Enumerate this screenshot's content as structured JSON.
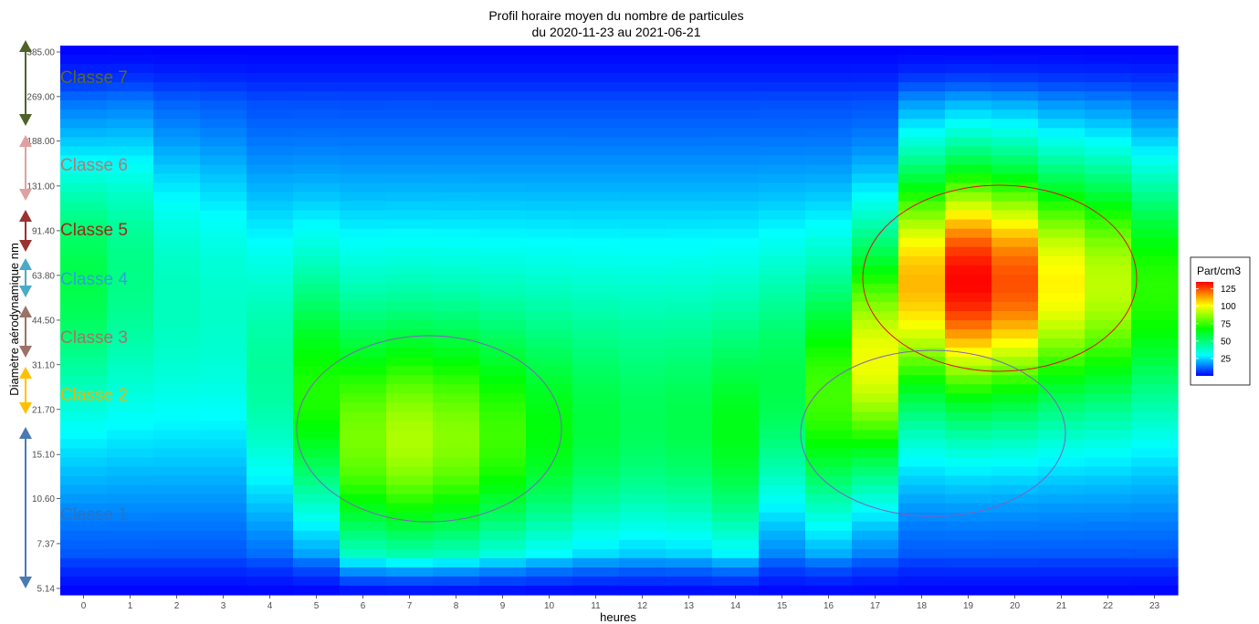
{
  "chart_data": {
    "type": "heatmap",
    "title": "Profil horaire moyen du nombre de particules",
    "subtitle": "du 2020-11-23 au 2021-06-21",
    "xlabel": "heures",
    "ylabel": "Diamètre aérodynamique nm",
    "x": [
      0,
      1,
      2,
      3,
      4,
      5,
      6,
      7,
      8,
      9,
      10,
      11,
      12,
      13,
      14,
      15,
      16,
      17,
      18,
      19,
      20,
      21,
      22,
      23
    ],
    "y_ticks": [
      "5.14",
      "7.37",
      "10.60",
      "15.10",
      "21.70",
      "31.10",
      "44.50",
      "63.80",
      "91.40",
      "131.00",
      "188.00",
      "269.00",
      "385.00"
    ],
    "y_scale": "log",
    "grid": false,
    "legend": {
      "title": "Part/cm3",
      "position": "right",
      "ticks": [
        25,
        50,
        75,
        100,
        125
      ],
      "range": [
        0,
        135
      ],
      "colors": [
        "#0000ff",
        "#00ffff",
        "#00ff00",
        "#ffff00",
        "#ff0000"
      ]
    },
    "series": [
      {
        "hour": 0,
        "peak_y": "75",
        "peak_value": 55
      },
      {
        "hour": 1,
        "peak_y": "91.40",
        "peak_value": 48
      },
      {
        "hour": 2,
        "peak_y": "91.40",
        "peak_value": 38
      },
      {
        "hour": 3,
        "peak_y": "91.40",
        "peak_value": 35
      },
      {
        "hour": 4,
        "peak_y": "21.70",
        "peak_value": 42
      },
      {
        "hour": 5,
        "peak_y": "21.70",
        "peak_value": 70
      },
      {
        "hour": 6,
        "peak_y": "15.10",
        "peak_value": 88
      },
      {
        "hour": 7,
        "peak_y": "15.10",
        "peak_value": 95
      },
      {
        "hour": 8,
        "peak_y": "15.10",
        "peak_value": 90
      },
      {
        "hour": 9,
        "peak_y": "15.10",
        "peak_value": 80
      },
      {
        "hour": 10,
        "peak_y": "15.10",
        "peak_value": 70
      },
      {
        "hour": 11,
        "peak_y": "15.10",
        "peak_value": 62
      },
      {
        "hour": 12,
        "peak_y": "15.10",
        "peak_value": 58
      },
      {
        "hour": 13,
        "peak_y": "15.10",
        "peak_value": 60
      },
      {
        "hour": 14,
        "peak_y": "15.10",
        "peak_value": 68
      },
      {
        "hour": 15,
        "peak_y": "21.70",
        "peak_value": 55
      },
      {
        "hour": 16,
        "peak_y": "21.70",
        "peak_value": 75
      },
      {
        "hour": 17,
        "peak_y": "31.10",
        "peak_value": 95
      },
      {
        "hour": 18,
        "peak_y": "63.80",
        "peak_value": 108
      },
      {
        "hour": 19,
        "peak_y": "63.80",
        "peak_value": 132
      },
      {
        "hour": 20,
        "peak_y": "63.80",
        "peak_value": 122
      },
      {
        "hour": 21,
        "peak_y": "63.80",
        "peak_value": 100
      },
      {
        "hour": 22,
        "peak_y": "63.80",
        "peak_value": 90
      },
      {
        "hour": 23,
        "peak_y": "63.80",
        "peak_value": 70
      }
    ],
    "annotations": [
      {
        "text": "Classe 1",
        "color": "#2a73c4",
        "arrow_color": "#4a7ab4"
      },
      {
        "text": "Classe 2",
        "color": "#f0b400",
        "arrow_color": "#ffc000"
      },
      {
        "text": "Classe 3",
        "color": "#a0756a",
        "arrow_color": "#9c7167"
      },
      {
        "text": "Classe 4",
        "color": "#2aa5d8",
        "arrow_color": "#4aaac8"
      },
      {
        "text": "Classe 5",
        "color": "#9a2a14",
        "arrow_color": "#9a3232"
      },
      {
        "text": "Classe 6",
        "color": "#b07a7a",
        "arrow_color": "#e0a0a0"
      },
      {
        "text": "Classe 7",
        "color": "#5a6a2a",
        "arrow_color": "#4f6228"
      }
    ],
    "ellipses": [
      {
        "label": "morning",
        "color": "#8060c0"
      },
      {
        "label": "evening-large",
        "color": "#e01010"
      },
      {
        "label": "evening-small",
        "color": "#8060c0"
      }
    ]
  }
}
